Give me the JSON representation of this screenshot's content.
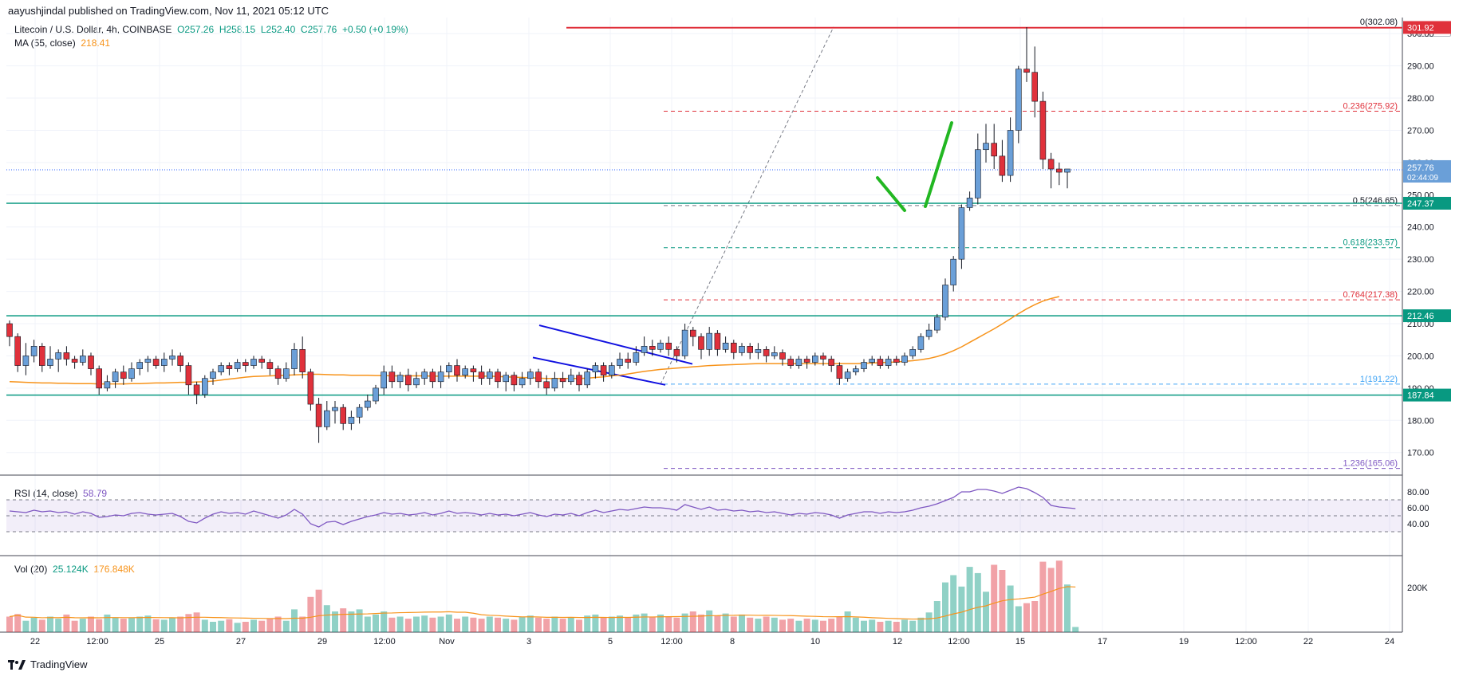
{
  "header": {
    "publisher": "aayushjindal published on TradingView.com, Nov 11, 2021 05:12 UTC"
  },
  "symbol": {
    "name": "Litecoin / U.S. Dollar, 4h, COINBASE",
    "ohlc": {
      "o": "O257.26",
      "h": "H258.15",
      "l": "L252.40",
      "c": "C257.76",
      "chg": "+0.50 (+0.19%)"
    }
  },
  "ma": {
    "label": "MA (55, close)",
    "value": "218.41",
    "color": "#f7931a"
  },
  "rsi": {
    "label": "RSI (14, close)",
    "value": "58.79",
    "color": "#7e57c2",
    "ticks": [
      "80.00",
      "60.00",
      "40.00"
    ]
  },
  "volume": {
    "label": "Vol (20)",
    "value": "25.124K",
    "ma_value": "176.848K",
    "tick": "200K"
  },
  "currency": "USD",
  "footer": {
    "brand": "TradingView"
  },
  "colors": {
    "up": "#6a9fd8",
    "down": "#e0313b",
    "support": "#089981",
    "resistance": "#e0313b",
    "channel": "#1010e0",
    "arrow": "#22b722"
  },
  "chart_data": {
    "type": "candlestick",
    "y_range": [
      163,
      305
    ],
    "y_ticks": [
      "300.00",
      "290.00",
      "280.00",
      "270.00",
      "260.00",
      "250.00",
      "240.00",
      "230.00",
      "220.00",
      "210.00",
      "200.00",
      "190.00",
      "180.00",
      "170.00"
    ],
    "x_ticks": [
      "22",
      "12:00",
      "25",
      "27",
      "29",
      "12:00",
      "Nov",
      "3",
      "5",
      "12:00",
      "8",
      "10",
      "12",
      "12:00",
      "15",
      "17",
      "19",
      "12:00",
      "22",
      "24"
    ],
    "price_tags": {
      "last": {
        "value": "257.76",
        "countdown": "02:44:09"
      },
      "levels": [
        {
          "value": "301.92",
          "kind": "resistance"
        },
        {
          "value": "247.37",
          "kind": "support"
        },
        {
          "value": "212.46",
          "kind": "support"
        },
        {
          "value": "187.84",
          "kind": "support"
        }
      ]
    },
    "fib_levels": [
      {
        "ratio": "0",
        "value": 302.08,
        "label": "0(302.08)"
      },
      {
        "ratio": "0.236",
        "value": 275.92,
        "label": "0.236(275.92)"
      },
      {
        "ratio": "0.5",
        "value": 246.65,
        "label": "0.5(246.65)"
      },
      {
        "ratio": "0.618",
        "value": 233.57,
        "label": "0.618(233.57)"
      },
      {
        "ratio": "0.764",
        "value": 217.38,
        "label": "0.764(217.38)"
      },
      {
        "ratio": "1",
        "value": 191.22,
        "label": "1(191.22)"
      },
      {
        "ratio": "1.236",
        "value": 165.06,
        "label": "1.236(165.06)"
      }
    ],
    "candles": [
      [
        210,
        206,
        211,
        203
      ],
      [
        206,
        197,
        207,
        195
      ],
      [
        197,
        200,
        204,
        194
      ],
      [
        200,
        203,
        205,
        198
      ],
      [
        203,
        197,
        204,
        195
      ],
      [
        197,
        199,
        203,
        196
      ],
      [
        199,
        201,
        202,
        195
      ],
      [
        201,
        199,
        203,
        197
      ],
      [
        199,
        198,
        200,
        196
      ],
      [
        198,
        200,
        202,
        197
      ],
      [
        200,
        196,
        201,
        194
      ],
      [
        196,
        190,
        197,
        188
      ],
      [
        190,
        192,
        194,
        189
      ],
      [
        192,
        195,
        196,
        190
      ],
      [
        195,
        193,
        197,
        191
      ],
      [
        193,
        196,
        198,
        192
      ],
      [
        196,
        198,
        199,
        194
      ],
      [
        198,
        199,
        200,
        195
      ],
      [
        199,
        197,
        200,
        196
      ],
      [
        197,
        199,
        201,
        195
      ],
      [
        199,
        200,
        202,
        197
      ],
      [
        200,
        197,
        201,
        195
      ],
      [
        197,
        191,
        198,
        188
      ],
      [
        191,
        188,
        192,
        185
      ],
      [
        188,
        193,
        194,
        187
      ],
      [
        193,
        195,
        196,
        191
      ],
      [
        195,
        197,
        198,
        194
      ],
      [
        197,
        196,
        198,
        194
      ],
      [
        196,
        198,
        199,
        195
      ],
      [
        198,
        197,
        199,
        195
      ],
      [
        197,
        199,
        200,
        196
      ],
      [
        199,
        198,
        200,
        196
      ],
      [
        198,
        196,
        199,
        194
      ],
      [
        196,
        193,
        197,
        191
      ],
      [
        193,
        196,
        198,
        192
      ],
      [
        196,
        202,
        204,
        194
      ],
      [
        202,
        195,
        206,
        193
      ],
      [
        195,
        185,
        196,
        183
      ],
      [
        185,
        178,
        187,
        173
      ],
      [
        178,
        183,
        186,
        177
      ],
      [
        183,
        184,
        186,
        179
      ],
      [
        184,
        179,
        185,
        177
      ],
      [
        179,
        181,
        183,
        177
      ],
      [
        181,
        184,
        185,
        179
      ],
      [
        184,
        186,
        188,
        183
      ],
      [
        186,
        190,
        191,
        185
      ],
      [
        190,
        195,
        197,
        188
      ],
      [
        195,
        192,
        197,
        190
      ],
      [
        192,
        194,
        195,
        190
      ],
      [
        194,
        191,
        196,
        189
      ],
      [
        191,
        193,
        195,
        190
      ],
      [
        193,
        195,
        196,
        191
      ],
      [
        195,
        192,
        196,
        190
      ],
      [
        192,
        195,
        197,
        190
      ],
      [
        195,
        197,
        198,
        193
      ],
      [
        197,
        194,
        199,
        192
      ],
      [
        194,
        196,
        197,
        193
      ],
      [
        196,
        195,
        197,
        192
      ],
      [
        195,
        193,
        197,
        191
      ],
      [
        193,
        195,
        196,
        191
      ],
      [
        195,
        192,
        196,
        190
      ],
      [
        192,
        194,
        195,
        189
      ],
      [
        194,
        191,
        195,
        189
      ],
      [
        191,
        193,
        195,
        190
      ],
      [
        193,
        195,
        196,
        191
      ],
      [
        195,
        192,
        196,
        190
      ],
      [
        192,
        190,
        194,
        188
      ],
      [
        190,
        193,
        195,
        189
      ],
      [
        193,
        192,
        195,
        190
      ],
      [
        192,
        194,
        196,
        191
      ],
      [
        194,
        191,
        195,
        189
      ],
      [
        191,
        195,
        196,
        190
      ],
      [
        195,
        197,
        198,
        193
      ],
      [
        197,
        194,
        198,
        192
      ],
      [
        194,
        197,
        198,
        193
      ],
      [
        197,
        199,
        201,
        196
      ],
      [
        199,
        198,
        201,
        196
      ],
      [
        198,
        201,
        203,
        197
      ],
      [
        201,
        203,
        206,
        200
      ],
      [
        203,
        202,
        205,
        200
      ],
      [
        202,
        204,
        205,
        201
      ],
      [
        204,
        202,
        206,
        200
      ],
      [
        202,
        200,
        203,
        198
      ],
      [
        200,
        208,
        210,
        199
      ],
      [
        208,
        206,
        209,
        203
      ],
      [
        206,
        202,
        207,
        199
      ],
      [
        202,
        207,
        209,
        200
      ],
      [
        207,
        202,
        208,
        200
      ],
      [
        202,
        204,
        206,
        201
      ],
      [
        204,
        201,
        205,
        199
      ],
      [
        201,
        203,
        204,
        200
      ],
      [
        203,
        201,
        204,
        199
      ],
      [
        201,
        202,
        204,
        199
      ],
      [
        202,
        200,
        203,
        198
      ],
      [
        200,
        201,
        203,
        199
      ],
      [
        201,
        199,
        202,
        197
      ],
      [
        199,
        197,
        200,
        196
      ],
      [
        197,
        199,
        200,
        196
      ],
      [
        199,
        198,
        200,
        196
      ],
      [
        198,
        200,
        201,
        197
      ],
      [
        200,
        199,
        201,
        197
      ],
      [
        199,
        197,
        200,
        195
      ],
      [
        197,
        193,
        198,
        191
      ],
      [
        193,
        195,
        196,
        192
      ],
      [
        195,
        196,
        197,
        194
      ],
      [
        196,
        198,
        199,
        195
      ],
      [
        198,
        199,
        200,
        197
      ],
      [
        199,
        197,
        200,
        196
      ],
      [
        197,
        199,
        200,
        196
      ],
      [
        199,
        198,
        200,
        197
      ],
      [
        198,
        200,
        201,
        197
      ],
      [
        200,
        202,
        203,
        199
      ],
      [
        202,
        206,
        207,
        201
      ],
      [
        206,
        208,
        210,
        205
      ],
      [
        208,
        212,
        213,
        207
      ],
      [
        212,
        222,
        224,
        211
      ],
      [
        222,
        230,
        231,
        220
      ],
      [
        230,
        246,
        247,
        227
      ],
      [
        246,
        249,
        251,
        245
      ],
      [
        249,
        264,
        269,
        247
      ],
      [
        264,
        266,
        272,
        260
      ],
      [
        266,
        262,
        272,
        258
      ],
      [
        262,
        256,
        267,
        254
      ],
      [
        256,
        270,
        274,
        254
      ],
      [
        270,
        289,
        290,
        266
      ],
      [
        289,
        288,
        302,
        285
      ],
      [
        288,
        279,
        296,
        274
      ],
      [
        279,
        261,
        282,
        258
      ],
      [
        261,
        258,
        263,
        252
      ],
      [
        258,
        257,
        260,
        253
      ],
      [
        257,
        258,
        258,
        252
      ]
    ],
    "ma55": [
      192,
      191.9,
      191.8,
      191.7,
      191.6,
      191.6,
      191.5,
      191.5,
      191.4,
      191.4,
      191.4,
      191.3,
      191.3,
      191.3,
      191.3,
      191.4,
      191.4,
      191.5,
      191.6,
      191.6,
      191.7,
      191.8,
      191.8,
      191.9,
      192,
      192.2,
      192.5,
      192.8,
      193.1,
      193.4,
      193.6,
      193.7,
      193.8,
      193.9,
      194,
      194.1,
      194.2,
      194.3,
      194.3,
      194.2,
      194.1,
      194.1,
      194,
      194,
      194,
      193.9,
      193.9,
      193.8,
      193.8,
      193.8,
      193.8,
      193.8,
      193.7,
      193.7,
      193.7,
      193.7,
      193.7,
      193.7,
      193.7,
      193.7,
      193.6,
      193.5,
      193.4,
      193.3,
      193.2,
      193.1,
      193,
      193,
      193,
      193,
      193,
      193.1,
      193.3,
      193.5,
      193.8,
      194,
      194.4,
      194.8,
      195.2,
      195.5,
      195.8,
      196,
      196.2,
      196.4,
      196.6,
      196.8,
      197,
      197.1,
      197.2,
      197.3,
      197.4,
      197.5,
      197.6,
      197.6,
      197.6,
      197.6,
      197.6,
      197.6,
      197.6,
      197.6,
      197.6,
      197.6,
      197.6,
      197.6,
      197.6,
      197.7,
      197.8,
      197.9,
      198,
      198.1,
      198.3,
      198.5,
      198.8,
      199.2,
      199.8,
      200.6,
      201.6,
      202.8,
      204.2,
      205.6,
      207,
      208.4,
      209.9,
      211.5,
      213.1,
      214.6,
      215.9,
      217,
      217.8,
      218.41
    ],
    "rsi": [
      56,
      55,
      54,
      57,
      55,
      56,
      54,
      55,
      52,
      55,
      53,
      48,
      49,
      51,
      50,
      53,
      54,
      52,
      51,
      52,
      53,
      49,
      43,
      41,
      47,
      52,
      55,
      53,
      54,
      52,
      56,
      53,
      50,
      47,
      51,
      58,
      52,
      40,
      36,
      42,
      43,
      39,
      43,
      46,
      49,
      51,
      54,
      52,
      53,
      51,
      52,
      54,
      51,
      53,
      56,
      53,
      54,
      53,
      51,
      53,
      51,
      52,
      50,
      52,
      54,
      51,
      49,
      52,
      51,
      53,
      50,
      54,
      57,
      54,
      56,
      58,
      57,
      59,
      61,
      60,
      60,
      59,
      57,
      64,
      61,
      58,
      61,
      57,
      58,
      56,
      57,
      55,
      56,
      54,
      55,
      53,
      51,
      53,
      52,
      54,
      53,
      51,
      47,
      51,
      53,
      55,
      55,
      53,
      55,
      54,
      55,
      57,
      60,
      62,
      65,
      69,
      73,
      80,
      80,
      83,
      83,
      81,
      78,
      82,
      86,
      84,
      79,
      73,
      63,
      61,
      60,
      59
    ],
    "volume": [
      30,
      35,
      22,
      28,
      24,
      30,
      26,
      34,
      22,
      26,
      30,
      25,
      34,
      28,
      26,
      28,
      30,
      32,
      25,
      24,
      28,
      30,
      35,
      38,
      24,
      20,
      22,
      25,
      18,
      20,
      24,
      22,
      26,
      30,
      22,
      44,
      30,
      68,
      82,
      52,
      40,
      46,
      40,
      44,
      30,
      34,
      40,
      28,
      30,
      26,
      30,
      32,
      28,
      30,
      34,
      26,
      30,
      28,
      26,
      30,
      28,
      26,
      24,
      30,
      32,
      28,
      26,
      30,
      26,
      28,
      24,
      32,
      34,
      28,
      30,
      32,
      28,
      34,
      36,
      30,
      34,
      30,
      28,
      36,
      40,
      34,
      42,
      32,
      36,
      30,
      34,
      28,
      26,
      30,
      28,
      24,
      26,
      22,
      26,
      24,
      22,
      26,
      30,
      40,
      28,
      22,
      24,
      20,
      22,
      20,
      24,
      22,
      28,
      38,
      60,
      96,
      110,
      88,
      126,
      114,
      78,
      130,
      120,
      90,
      50,
      56,
      60,
      136,
      124,
      138,
      92,
      10
    ],
    "series": [
      {
        "name": "MA (55, close)"
      }
    ]
  }
}
